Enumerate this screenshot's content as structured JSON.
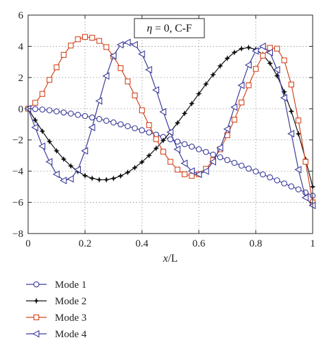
{
  "chart_data": {
    "type": "line",
    "xlabel": "x/L",
    "ylabel": "",
    "title": "",
    "annotation": {
      "symbol": "η",
      "text": " = 0, C-F"
    },
    "xlim": [
      0,
      1
    ],
    "ylim": [
      -8,
      6
    ],
    "xticks": [
      0,
      0.2,
      0.4,
      0.6,
      0.8,
      1
    ],
    "xtick_labels": [
      "0",
      "0.2",
      "0.4",
      "0.6",
      "0.8",
      "1"
    ],
    "yticks": [
      -8,
      -6,
      -4,
      -2,
      0,
      2,
      4,
      6
    ],
    "ytick_labels": [
      "−8",
      "−6",
      "−4",
      "−2",
      "0",
      "2",
      "4",
      "6"
    ],
    "grid": true,
    "legend_position": "below plot, left",
    "series": [
      {
        "name": "Mode 1",
        "color": "#3a3a9a",
        "marker": "circle",
        "x": [
          0,
          0.025,
          0.05,
          0.075,
          0.1,
          0.125,
          0.15,
          0.175,
          0.2,
          0.225,
          0.25,
          0.275,
          0.3,
          0.325,
          0.35,
          0.375,
          0.4,
          0.425,
          0.45,
          0.475,
          0.5,
          0.525,
          0.55,
          0.575,
          0.6,
          0.625,
          0.65,
          0.675,
          0.7,
          0.725,
          0.75,
          0.775,
          0.8,
          0.825,
          0.85,
          0.875,
          0.9,
          0.925,
          0.95,
          0.975,
          1
        ],
        "y": [
          0,
          -0.02,
          -0.05,
          -0.1,
          -0.17,
          -0.24,
          -0.31,
          -0.39,
          -0.47,
          -0.56,
          -0.66,
          -0.77,
          -0.88,
          -1.0,
          -1.12,
          -1.25,
          -1.38,
          -1.52,
          -1.66,
          -1.81,
          -1.96,
          -2.11,
          -2.27,
          -2.43,
          -2.6,
          -2.77,
          -2.94,
          -3.11,
          -3.29,
          -3.47,
          -3.65,
          -3.84,
          -4.02,
          -4.21,
          -4.4,
          -4.59,
          -4.79,
          -4.98,
          -5.17,
          -5.37,
          -5.57
        ]
      },
      {
        "name": "Mode 2",
        "color": "#111111",
        "marker": "star",
        "x": [
          0,
          0.025,
          0.05,
          0.075,
          0.1,
          0.125,
          0.15,
          0.175,
          0.2,
          0.225,
          0.25,
          0.275,
          0.3,
          0.325,
          0.35,
          0.375,
          0.4,
          0.425,
          0.45,
          0.475,
          0.5,
          0.525,
          0.55,
          0.575,
          0.6,
          0.625,
          0.65,
          0.675,
          0.7,
          0.725,
          0.75,
          0.775,
          0.8,
          0.825,
          0.85,
          0.875,
          0.9,
          0.925,
          0.95,
          0.975,
          1
        ],
        "y": [
          0,
          -0.73,
          -1.44,
          -2.1,
          -2.7,
          -3.23,
          -3.67,
          -4.02,
          -4.29,
          -4.46,
          -4.55,
          -4.55,
          -4.47,
          -4.31,
          -4.08,
          -3.78,
          -3.42,
          -3.0,
          -2.54,
          -2.03,
          -1.49,
          -0.91,
          -0.3,
          0.33,
          0.96,
          1.58,
          2.18,
          2.74,
          3.23,
          3.61,
          3.85,
          3.92,
          3.8,
          3.47,
          2.91,
          2.11,
          1.08,
          -0.17,
          -1.61,
          -3.24,
          -5.0
        ]
      },
      {
        "name": "Mode 3",
        "color": "#d2451e",
        "marker": "square",
        "x": [
          0,
          0.025,
          0.05,
          0.075,
          0.1,
          0.125,
          0.15,
          0.175,
          0.2,
          0.225,
          0.25,
          0.275,
          0.3,
          0.325,
          0.35,
          0.375,
          0.4,
          0.425,
          0.45,
          0.475,
          0.5,
          0.525,
          0.55,
          0.575,
          0.6,
          0.625,
          0.65,
          0.675,
          0.7,
          0.725,
          0.75,
          0.775,
          0.8,
          0.825,
          0.85,
          0.875,
          0.9,
          0.925,
          0.95,
          0.975,
          1
        ],
        "y": [
          0,
          0.38,
          0.95,
          1.85,
          2.65,
          3.45,
          4.05,
          4.45,
          4.6,
          4.55,
          4.35,
          3.95,
          3.35,
          2.6,
          1.75,
          0.85,
          -0.1,
          -1.05,
          -1.95,
          -2.75,
          -3.4,
          -3.9,
          -4.2,
          -4.3,
          -4.2,
          -3.85,
          -3.3,
          -2.6,
          -1.7,
          -0.7,
          0.4,
          1.5,
          2.55,
          3.4,
          3.9,
          3.85,
          3.1,
          1.55,
          -0.75,
          -3.4,
          -6.0
        ]
      },
      {
        "name": "Mode 4",
        "color": "#3a3a9a",
        "marker": "triangle-left",
        "x": [
          0,
          0.025,
          0.05,
          0.075,
          0.1,
          0.125,
          0.15,
          0.175,
          0.2,
          0.225,
          0.25,
          0.275,
          0.3,
          0.325,
          0.35,
          0.375,
          0.4,
          0.425,
          0.45,
          0.475,
          0.5,
          0.525,
          0.55,
          0.575,
          0.6,
          0.625,
          0.65,
          0.675,
          0.7,
          0.725,
          0.75,
          0.775,
          0.8,
          0.825,
          0.85,
          0.875,
          0.9,
          0.925,
          0.95,
          0.975,
          1
        ],
        "y": [
          0,
          -1.2,
          -2.4,
          -3.4,
          -4.2,
          -4.6,
          -4.5,
          -3.9,
          -2.7,
          -1.2,
          0.5,
          2.1,
          3.4,
          4.1,
          4.25,
          4.1,
          3.5,
          2.5,
          1.2,
          -0.2,
          -1.5,
          -2.6,
          -3.5,
          -4.0,
          -4.2,
          -4.0,
          -3.4,
          -2.5,
          -1.3,
          0.1,
          1.5,
          2.8,
          3.7,
          4.0,
          3.6,
          2.5,
          0.7,
          -1.6,
          -3.9,
          -5.7,
          -6.2
        ]
      }
    ]
  }
}
